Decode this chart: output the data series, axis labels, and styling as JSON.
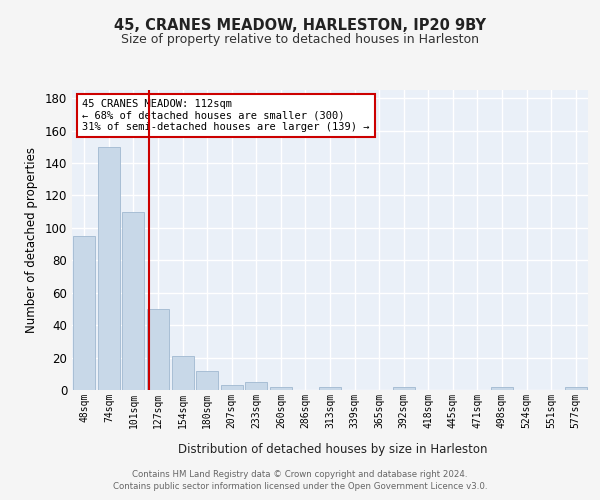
{
  "title": "45, CRANES MEADOW, HARLESTON, IP20 9BY",
  "subtitle": "Size of property relative to detached houses in Harleston",
  "xlabel": "Distribution of detached houses by size in Harleston",
  "ylabel": "Number of detached properties",
  "bar_labels": [
    "48sqm",
    "74sqm",
    "101sqm",
    "127sqm",
    "154sqm",
    "180sqm",
    "207sqm",
    "233sqm",
    "260sqm",
    "286sqm",
    "313sqm",
    "339sqm",
    "365sqm",
    "392sqm",
    "418sqm",
    "445sqm",
    "471sqm",
    "498sqm",
    "524sqm",
    "551sqm",
    "577sqm"
  ],
  "bar_values": [
    95,
    150,
    110,
    50,
    21,
    12,
    3,
    5,
    2,
    0,
    2,
    0,
    0,
    2,
    0,
    0,
    0,
    2,
    0,
    0,
    2
  ],
  "bar_color": "#c8d8e8",
  "bar_edgecolor": "#a0b8d0",
  "vline_x": 2.62,
  "vline_color": "#cc0000",
  "annotation_text": "45 CRANES MEADOW: 112sqm\n← 68% of detached houses are smaller (300)\n31% of semi-detached houses are larger (139) →",
  "annotation_box_color": "#ffffff",
  "annotation_box_edgecolor": "#cc0000",
  "ylim": [
    0,
    185
  ],
  "yticks": [
    0,
    20,
    40,
    60,
    80,
    100,
    120,
    140,
    160,
    180
  ],
  "bg_color": "#eaf0f8",
  "grid_color": "#ffffff",
  "footer_line1": "Contains HM Land Registry data © Crown copyright and database right 2024.",
  "footer_line2": "Contains public sector information licensed under the Open Government Licence v3.0."
}
